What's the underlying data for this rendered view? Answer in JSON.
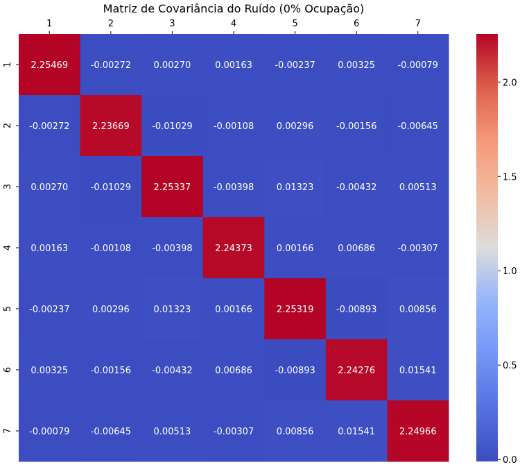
{
  "chart_data": {
    "type": "heatmap",
    "title": "Matriz de Covariância do Ruído (0% Ocupação)",
    "x_categories": [
      "1",
      "2",
      "3",
      "4",
      "5",
      "6",
      "7"
    ],
    "y_categories": [
      "1",
      "2",
      "3",
      "4",
      "5",
      "6",
      "7"
    ],
    "values": [
      [
        2.25469,
        -0.00272,
        0.0027,
        0.00163,
        -0.00237,
        0.00325,
        -0.00079
      ],
      [
        -0.00272,
        2.23669,
        -0.01029,
        -0.00108,
        0.00296,
        -0.00156,
        -0.00645
      ],
      [
        0.0027,
        -0.01029,
        2.25337,
        -0.00398,
        0.01323,
        -0.00432,
        0.00513
      ],
      [
        0.00163,
        -0.00108,
        -0.00398,
        2.24373,
        0.00166,
        0.00686,
        -0.00307
      ],
      [
        -0.00237,
        0.00296,
        0.01323,
        0.00166,
        2.25319,
        -0.00893,
        0.00856
      ],
      [
        0.00325,
        -0.00156,
        -0.00432,
        0.00686,
        -0.00893,
        2.24276,
        0.01541
      ],
      [
        -0.00079,
        -0.00645,
        0.00513,
        -0.00307,
        0.00856,
        0.01541,
        2.24966
      ]
    ],
    "labels": [
      [
        "2.25469",
        "-0.00272",
        "0.00270",
        "0.00163",
        "-0.00237",
        "0.00325",
        "-0.00079"
      ],
      [
        "-0.00272",
        "2.23669",
        "-0.01029",
        "-0.00108",
        "0.00296",
        "-0.00156",
        "-0.00645"
      ],
      [
        "0.00270",
        "-0.01029",
        "2.25337",
        "-0.00398",
        "0.01323",
        "-0.00432",
        "0.00513"
      ],
      [
        "0.00163",
        "-0.00108",
        "-0.00398",
        "2.24373",
        "0.00166",
        "0.00686",
        "-0.00307"
      ],
      [
        "-0.00237",
        "0.00296",
        "0.01323",
        "0.00166",
        "2.25319",
        "-0.00893",
        "0.00856"
      ],
      [
        "0.00325",
        "-0.00156",
        "-0.00432",
        "0.00686",
        "-0.00893",
        "2.24276",
        "0.01541"
      ],
      [
        "-0.00079",
        "-0.00645",
        "0.00513",
        "-0.00307",
        "0.00856",
        "0.01541",
        "2.24966"
      ]
    ],
    "colormap": "coolwarm",
    "color_low": "#3b4cc0",
    "color_high": "#b40426",
    "vmin": -0.01029,
    "vmax": 2.25469,
    "x_axis_position": "top",
    "colorbar": {
      "position": "right",
      "ticks": [
        0.0,
        0.5,
        1.0,
        1.5,
        2.0
      ],
      "tick_labels": [
        "0.0",
        "0.5",
        "1.0",
        "1.5",
        "2.0"
      ]
    }
  }
}
